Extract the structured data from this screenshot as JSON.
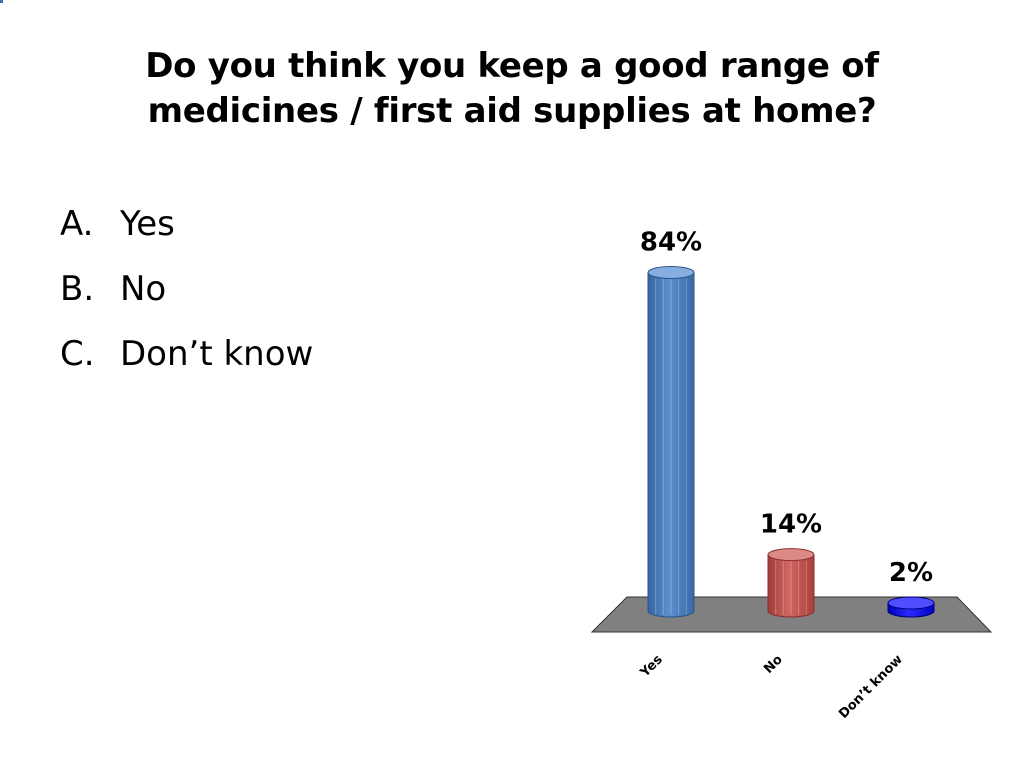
{
  "slide": {
    "title_lines": [
      "Do you think you keep a good range of",
      "medicines / first aid supplies at home?"
    ],
    "answers": [
      {
        "letter": "A.",
        "text": "Yes"
      },
      {
        "letter": "B.",
        "text": "No"
      },
      {
        "letter": "C.",
        "text": "Don’t know"
      }
    ]
  },
  "chart_data": {
    "type": "bar",
    "categories": [
      "Yes",
      "No",
      "Don’t know"
    ],
    "values": [
      84,
      14,
      2
    ],
    "data_labels": [
      "84%",
      "14%",
      "2%"
    ],
    "value_unit": "%",
    "ylim": [
      0,
      100
    ],
    "grid": false,
    "legend": "none",
    "style": "3d-cylinder",
    "colors": [
      "#4f81bd",
      "#c0504d",
      "#0000e0"
    ],
    "floor_color": "#808080"
  }
}
